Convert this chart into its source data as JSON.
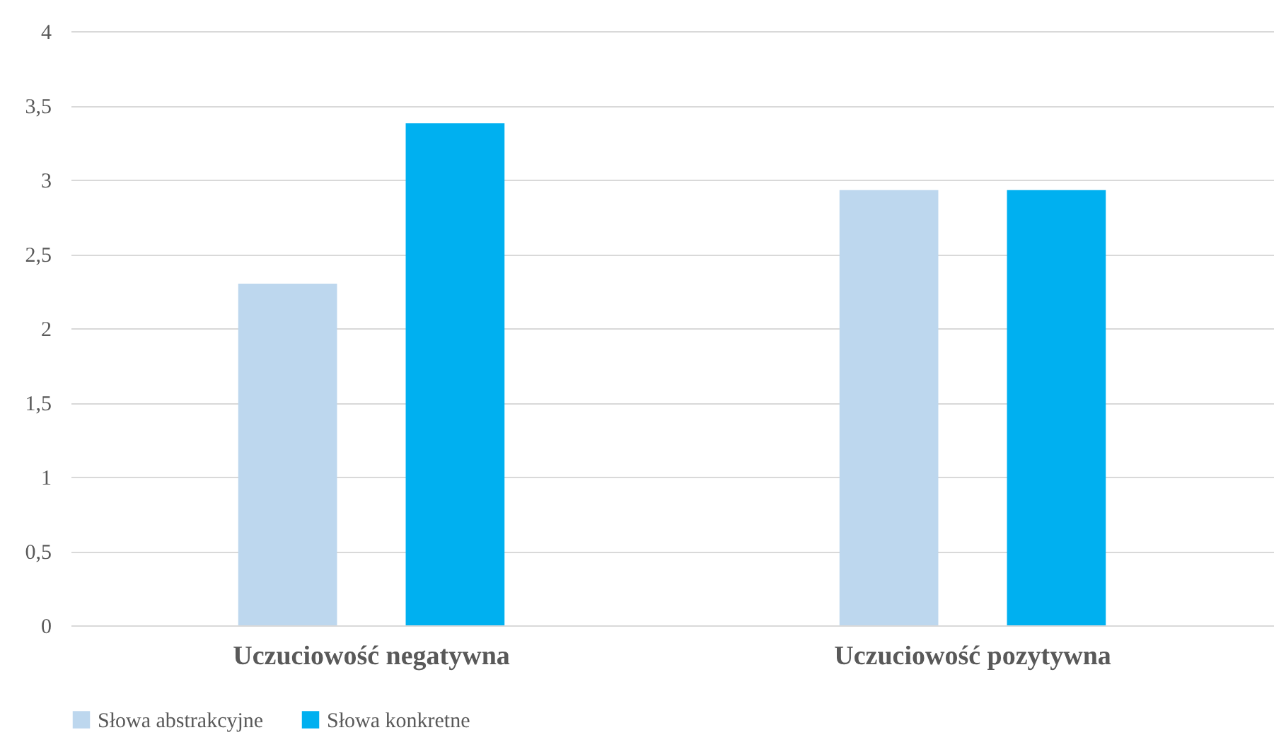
{
  "chart_data": {
    "type": "bar",
    "categories": [
      "Uczuciowość negatywna",
      "Uczuciowość pozytywna"
    ],
    "series": [
      {
        "name": "Słowa abstrakcyjne",
        "color": "#bdd7ee",
        "values": [
          2.3,
          2.93
        ]
      },
      {
        "name": "Słowa konkretne",
        "color": "#00b0f0",
        "values": [
          3.38,
          2.93
        ]
      }
    ],
    "ylim": [
      0,
      4
    ],
    "yticks": [
      0,
      {
        "value": 0.5,
        "label": "0,5"
      },
      1,
      {
        "value": 1.5,
        "label": "1,5"
      },
      2,
      {
        "value": 2.5,
        "label": "2,5"
      },
      3,
      {
        "value": 3.5,
        "label": "3,5"
      },
      4
    ],
    "grid": "y",
    "legend": "bottom"
  }
}
